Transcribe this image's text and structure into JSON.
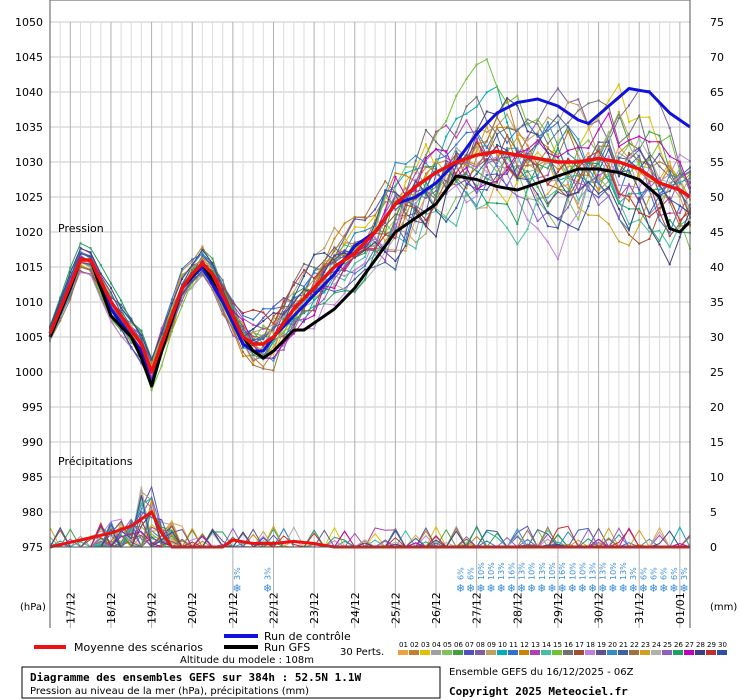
{
  "chart_data": {
    "type": "line",
    "title": "Diagramme des ensembles GEFS sur 384h : 52.5N 1.1W",
    "subtitle": "Pression au niveau de la mer (hPa), précipitations (mm)",
    "source": "Ensemble GEFS du 16/12/2025 - 06Z",
    "copyright": "Copyright 2025 Meteociel.fr",
    "altitude": "Altitude du modele : 108m",
    "label_pressure": "Pression",
    "label_precip": "Précipitations",
    "unit_left": "(hPa)",
    "unit_right": "(mm)",
    "y_left_ticks": [
      "1050",
      "1045",
      "1040",
      "1035",
      "1030",
      "1025",
      "1020",
      "1015",
      "1010",
      "1005",
      "1000",
      "995",
      "990",
      "985",
      "980",
      "975"
    ],
    "y_right_ticks": [
      "75",
      "70",
      "65",
      "60",
      "55",
      "50",
      "45",
      "40",
      "35",
      "30",
      "25",
      "20",
      "15",
      "10",
      "5",
      "0"
    ],
    "x_ticks": [
      "17/12",
      "18/12",
      "19/12",
      "20/12",
      "21/12",
      "22/12",
      "23/12",
      "24/12",
      "25/12",
      "26/12",
      "27/12",
      "28/12",
      "29/12",
      "30/12",
      "31/12",
      "01/01"
    ],
    "ylim_pressure": [
      975,
      1050
    ],
    "ylim_precip": [
      0,
      75
    ],
    "x_hours": [
      6,
      384
    ],
    "legend": {
      "mean": "Moyenne des scénarios",
      "control": "Run de contrôle",
      "gfs": "Run GFS",
      "perts": "30 Perts.",
      "mean_color": "#ee1111",
      "control_color": "#1111dd",
      "gfs_color": "#000000"
    },
    "pert_labels": [
      "01",
      "02",
      "03",
      "04",
      "05",
      "06",
      "07",
      "08",
      "09",
      "10",
      "11",
      "12",
      "13",
      "14",
      "15",
      "16",
      "17",
      "18",
      "19",
      "20",
      "21",
      "22",
      "23",
      "24",
      "25",
      "26",
      "27",
      "28",
      "29",
      "30"
    ],
    "pert_colors": [
      "#f0a040",
      "#c08030",
      "#e0c000",
      "#a0a0a0",
      "#80c060",
      "#40a040",
      "#5050c0",
      "#8060a0",
      "#c0a060",
      "#00b0b0",
      "#3070d0",
      "#d08000",
      "#b040b0",
      "#40c0a0",
      "#70c030",
      "#707070",
      "#a05030",
      "#c080e0",
      "#605090",
      "#3090c0",
      "#4060a0",
      "#a07040",
      "#d0a020",
      "#b0b0b0",
      "#9060c0",
      "#20a060",
      "#c000c0",
      "#404080",
      "#c03030",
      "#3050a0"
    ],
    "mean_pressure": [
      [
        6,
        1005.5
      ],
      [
        18,
        1012.5
      ],
      [
        24,
        1016
      ],
      [
        30,
        1016
      ],
      [
        42,
        1010
      ],
      [
        54,
        1006
      ],
      [
        60,
        1004
      ],
      [
        66,
        1000
      ],
      [
        72,
        1004
      ],
      [
        84,
        1012
      ],
      [
        90,
        1014
      ],
      [
        96,
        1015.5
      ],
      [
        102,
        1014
      ],
      [
        108,
        1011
      ],
      [
        114,
        1008
      ],
      [
        120,
        1005
      ],
      [
        126,
        1004
      ],
      [
        132,
        1004
      ],
      [
        138,
        1005
      ],
      [
        150,
        1009
      ],
      [
        162,
        1012
      ],
      [
        174,
        1015
      ],
      [
        186,
        1017
      ],
      [
        198,
        1020
      ],
      [
        210,
        1024
      ],
      [
        222,
        1026.5
      ],
      [
        234,
        1028.5
      ],
      [
        246,
        1030
      ],
      [
        258,
        1031
      ],
      [
        270,
        1031.5
      ],
      [
        282,
        1031
      ],
      [
        294,
        1030.5
      ],
      [
        306,
        1030
      ],
      [
        318,
        1030
      ],
      [
        330,
        1030.5
      ],
      [
        342,
        1030
      ],
      [
        354,
        1029
      ],
      [
        366,
        1027
      ],
      [
        378,
        1026
      ],
      [
        384,
        1025
      ]
    ],
    "control_pressure": [
      [
        6,
        1005
      ],
      [
        18,
        1012
      ],
      [
        24,
        1016
      ],
      [
        30,
        1016
      ],
      [
        42,
        1009
      ],
      [
        54,
        1005
      ],
      [
        60,
        1003
      ],
      [
        66,
        998
      ],
      [
        72,
        1003
      ],
      [
        84,
        1012
      ],
      [
        96,
        1015
      ],
      [
        108,
        1010
      ],
      [
        114,
        1007
      ],
      [
        120,
        1004
      ],
      [
        126,
        1003
      ],
      [
        132,
        1003
      ],
      [
        138,
        1005
      ],
      [
        150,
        1008
      ],
      [
        162,
        1011
      ],
      [
        174,
        1014
      ],
      [
        186,
        1018
      ],
      [
        198,
        1020
      ],
      [
        210,
        1024
      ],
      [
        222,
        1025
      ],
      [
        234,
        1027
      ],
      [
        246,
        1030
      ],
      [
        258,
        1034
      ],
      [
        270,
        1037
      ],
      [
        282,
        1038.5
      ],
      [
        294,
        1039
      ],
      [
        306,
        1038
      ],
      [
        318,
        1036
      ],
      [
        324,
        1035.5
      ],
      [
        336,
        1038
      ],
      [
        348,
        1040.5
      ],
      [
        360,
        1040
      ],
      [
        372,
        1037
      ],
      [
        384,
        1035
      ]
    ],
    "gfs_pressure": [
      [
        6,
        1005
      ],
      [
        18,
        1012
      ],
      [
        24,
        1016
      ],
      [
        30,
        1016
      ],
      [
        42,
        1008
      ],
      [
        54,
        1005
      ],
      [
        60,
        1002
      ],
      [
        66,
        998
      ],
      [
        72,
        1003
      ],
      [
        84,
        1012
      ],
      [
        96,
        1015.5
      ],
      [
        108,
        1011
      ],
      [
        114,
        1008
      ],
      [
        120,
        1005
      ],
      [
        126,
        1003
      ],
      [
        132,
        1002
      ],
      [
        138,
        1003
      ],
      [
        150,
        1006
      ],
      [
        156,
        1006
      ],
      [
        162,
        1007
      ],
      [
        174,
        1009
      ],
      [
        186,
        1012
      ],
      [
        198,
        1016
      ],
      [
        210,
        1020
      ],
      [
        222,
        1022
      ],
      [
        234,
        1024
      ],
      [
        246,
        1028
      ],
      [
        258,
        1027.5
      ],
      [
        270,
        1026.5
      ],
      [
        282,
        1026
      ],
      [
        294,
        1027
      ],
      [
        306,
        1028
      ],
      [
        318,
        1029
      ],
      [
        330,
        1029
      ],
      [
        342,
        1028.5
      ],
      [
        354,
        1027.5
      ],
      [
        366,
        1025
      ],
      [
        372,
        1020.5
      ],
      [
        378,
        1020
      ],
      [
        384,
        1021.5
      ]
    ],
    "mean_precip": [
      [
        6,
        0
      ],
      [
        42,
        2
      ],
      [
        54,
        3
      ],
      [
        60,
        4
      ],
      [
        66,
        5
      ],
      [
        72,
        2
      ],
      [
        78,
        0
      ],
      [
        108,
        0
      ],
      [
        114,
        1
      ],
      [
        126,
        0.5
      ],
      [
        138,
        0.5
      ],
      [
        150,
        0.8
      ],
      [
        162,
        0.5
      ],
      [
        174,
        0
      ],
      [
        384,
        0
      ]
    ],
    "snow_markers": [
      {
        "hour": 120,
        "label": "3%"
      },
      {
        "hour": 138,
        "label": "3%"
      },
      {
        "hour": 252,
        "label": "6%"
      },
      {
        "hour": 258,
        "label": "6%"
      },
      {
        "hour": 264,
        "label": "10%"
      },
      {
        "hour": 270,
        "label": "10%"
      },
      {
        "hour": 276,
        "label": "13%"
      },
      {
        "hour": 282,
        "label": "16%"
      },
      {
        "hour": 288,
        "label": "13%"
      },
      {
        "hour": 294,
        "label": "10%"
      },
      {
        "hour": 300,
        "label": "13%"
      },
      {
        "hour": 306,
        "label": "10%"
      },
      {
        "hour": 312,
        "label": "16%"
      },
      {
        "hour": 318,
        "label": "10%"
      },
      {
        "hour": 324,
        "label": "10%"
      },
      {
        "hour": 330,
        "label": "13%"
      },
      {
        "hour": 336,
        "label": "13%"
      },
      {
        "hour": 342,
        "label": "10%"
      },
      {
        "hour": 348,
        "label": "13%"
      },
      {
        "hour": 354,
        "label": "3%"
      },
      {
        "hour": 360,
        "label": "6%"
      },
      {
        "hour": 366,
        "label": "6%"
      },
      {
        "hour": 372,
        "label": "6%"
      },
      {
        "hour": 378,
        "label": "6%"
      },
      {
        "hour": 384,
        "label": "3%"
      }
    ]
  }
}
